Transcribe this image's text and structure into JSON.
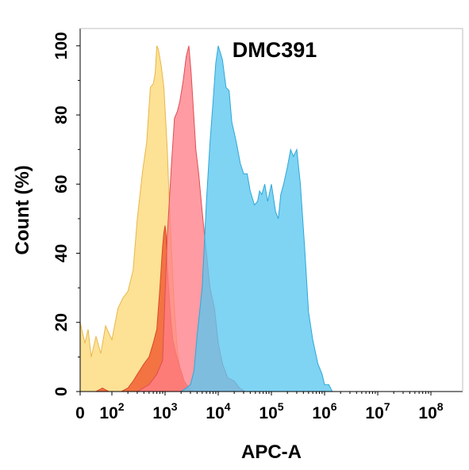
{
  "chart_data": {
    "type": "area",
    "title": "DMC391",
    "xlabel": "APC-A",
    "ylabel": "Count  (%)",
    "x_scale": "biexponential",
    "xlim": [
      0,
      100000000
    ],
    "ylim": [
      0,
      105
    ],
    "x_ticks": [
      {
        "base": "0",
        "exp": "",
        "value": 0
      },
      {
        "base": "10",
        "exp": "2",
        "value": 100
      },
      {
        "base": "10",
        "exp": "3",
        "value": 1000
      },
      {
        "base": "10",
        "exp": "4",
        "value": 10000
      },
      {
        "base": "10",
        "exp": "5",
        "value": 100000
      },
      {
        "base": "10",
        "exp": "6",
        "value": 1000000
      },
      {
        "base": "10",
        "exp": "7",
        "value": 10000000
      },
      {
        "base": "10",
        "exp": "8",
        "value": 100000000
      }
    ],
    "y_ticks": [
      "0",
      "20",
      "40",
      "60",
      "80",
      "100"
    ],
    "y_tick_values": [
      0,
      20,
      40,
      60,
      80,
      100
    ],
    "grid": false,
    "legend": "none",
    "series": [
      {
        "color": "#fcd877",
        "stroke": "#e8b84a",
        "points": [
          [
            0,
            20
          ],
          [
            15,
            14
          ],
          [
            25,
            18
          ],
          [
            35,
            10
          ],
          [
            50,
            16
          ],
          [
            65,
            11
          ],
          [
            80,
            19
          ],
          [
            100,
            15
          ],
          [
            130,
            24
          ],
          [
            160,
            27
          ],
          [
            200,
            29
          ],
          [
            250,
            35
          ],
          [
            300,
            50
          ],
          [
            380,
            64
          ],
          [
            450,
            72
          ],
          [
            530,
            88
          ],
          [
            600,
            89
          ],
          [
            650,
            92
          ],
          [
            700,
            100
          ],
          [
            750,
            99
          ],
          [
            850,
            94
          ],
          [
            950,
            88
          ],
          [
            1100,
            70
          ],
          [
            1200,
            55
          ],
          [
            1350,
            38
          ],
          [
            1500,
            24
          ],
          [
            1700,
            12
          ],
          [
            2000,
            4
          ],
          [
            2300,
            1
          ],
          [
            2800,
            0
          ]
        ]
      },
      {
        "color": "#f0532a",
        "stroke": "#d84a26",
        "points": [
          [
            0,
            0
          ],
          [
            50,
            0
          ],
          [
            70,
            1
          ],
          [
            90,
            0
          ],
          [
            120,
            0
          ],
          [
            150,
            0
          ],
          [
            200,
            1
          ],
          [
            250,
            3
          ],
          [
            300,
            5
          ],
          [
            400,
            8
          ],
          [
            500,
            10
          ],
          [
            600,
            14
          ],
          [
            700,
            18
          ],
          [
            800,
            30
          ],
          [
            900,
            42
          ],
          [
            950,
            46
          ],
          [
            1000,
            48
          ],
          [
            1050,
            45
          ],
          [
            1100,
            36
          ],
          [
            1200,
            27
          ],
          [
            1300,
            20
          ],
          [
            1400,
            15
          ],
          [
            1600,
            11
          ],
          [
            1900,
            7
          ],
          [
            2300,
            3
          ],
          [
            2800,
            1
          ],
          [
            3500,
            0
          ]
        ]
      },
      {
        "color": "#ff7f88",
        "stroke": "#e04e54",
        "points": [
          [
            300,
            0
          ],
          [
            500,
            2
          ],
          [
            700,
            5
          ],
          [
            900,
            9
          ],
          [
            1100,
            45
          ],
          [
            1300,
            64
          ],
          [
            1500,
            79
          ],
          [
            1700,
            81
          ],
          [
            1900,
            84
          ],
          [
            2200,
            90
          ],
          [
            2500,
            97
          ],
          [
            2800,
            100
          ],
          [
            3100,
            92
          ],
          [
            3400,
            82
          ],
          [
            3800,
            70
          ],
          [
            4300,
            63
          ],
          [
            5000,
            52
          ],
          [
            6000,
            40
          ],
          [
            7000,
            30
          ],
          [
            8500,
            24
          ],
          [
            10000,
            14
          ],
          [
            12000,
            8
          ],
          [
            15000,
            4
          ],
          [
            20000,
            3
          ],
          [
            25000,
            1
          ],
          [
            32000,
            0
          ]
        ]
      },
      {
        "color": "#5bc7f0",
        "stroke": "#2ea8d8",
        "points": [
          [
            2000,
            0
          ],
          [
            2500,
            1
          ],
          [
            3000,
            2
          ],
          [
            3500,
            6
          ],
          [
            4000,
            16
          ],
          [
            5000,
            30
          ],
          [
            6000,
            55
          ],
          [
            7000,
            72
          ],
          [
            8000,
            84
          ],
          [
            9000,
            95
          ],
          [
            10000,
            100
          ],
          [
            12000,
            96
          ],
          [
            14000,
            88
          ],
          [
            16000,
            87
          ],
          [
            18000,
            78
          ],
          [
            22000,
            72
          ],
          [
            26000,
            66
          ],
          [
            30000,
            63
          ],
          [
            35000,
            63
          ],
          [
            40000,
            58
          ],
          [
            48000,
            54
          ],
          [
            55000,
            55
          ],
          [
            60000,
            58
          ],
          [
            66000,
            57
          ],
          [
            75000,
            60
          ],
          [
            85000,
            55
          ],
          [
            100000,
            60
          ],
          [
            120000,
            52
          ],
          [
            135000,
            50
          ],
          [
            150000,
            57
          ],
          [
            170000,
            60
          ],
          [
            200000,
            65
          ],
          [
            230000,
            70
          ],
          [
            260000,
            68
          ],
          [
            300000,
            70
          ],
          [
            350000,
            60
          ],
          [
            420000,
            42
          ],
          [
            500000,
            23
          ],
          [
            600000,
            15
          ],
          [
            750000,
            8
          ],
          [
            900000,
            5
          ],
          [
            1000000,
            2
          ],
          [
            1200000,
            2
          ],
          [
            1400000,
            0
          ]
        ]
      }
    ]
  }
}
